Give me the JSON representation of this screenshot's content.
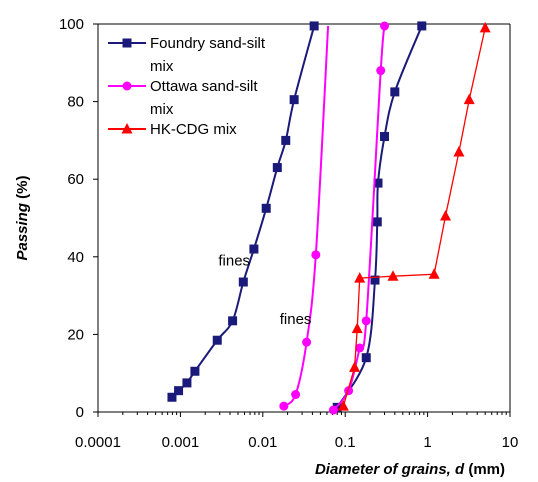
{
  "chart_data": {
    "type": "line",
    "x_scale": "log",
    "xlim": [
      0.0001,
      10
    ],
    "ylim": [
      0,
      100
    ],
    "x_ticks": [
      {
        "value": 0.0001,
        "label": "0.0001"
      },
      {
        "value": 0.001,
        "label": "0.001"
      },
      {
        "value": 0.01,
        "label": "0.01"
      },
      {
        "value": 0.1,
        "label": "0.1"
      },
      {
        "value": 1,
        "label": "1"
      },
      {
        "value": 10,
        "label": "10"
      }
    ],
    "y_ticks": [
      {
        "value": 0,
        "label": "0"
      },
      {
        "value": 20,
        "label": "20"
      },
      {
        "value": 40,
        "label": "40"
      },
      {
        "value": 60,
        "label": "60"
      },
      {
        "value": 80,
        "label": "80"
      },
      {
        "value": 100,
        "label": "100"
      }
    ],
    "ylabel_main": "Passing",
    "ylabel_unit": "(%)",
    "xlabel_main": "Diameter of grains, d",
    "xlabel_unit": "(mm)",
    "grid": false,
    "legend_position": "top-left",
    "annotations": [
      {
        "text": "fines",
        "x": 0.0045,
        "y": 39
      },
      {
        "text": "fines",
        "x": 0.025,
        "y": 24
      }
    ],
    "series": [
      {
        "name_line1": "Foundry sand-silt",
        "name_line2": "mix",
        "color": "#1a1a7a",
        "marker": "square",
        "points": [
          [
            0.00079,
            3.8
          ],
          [
            0.00095,
            5.5
          ],
          [
            0.0012,
            7.5
          ],
          [
            0.0015,
            10.5
          ],
          [
            0.0028,
            18.5
          ],
          [
            0.0043,
            23.5
          ],
          [
            0.0058,
            33.5
          ],
          [
            0.0078,
            42
          ],
          [
            0.011,
            52.5
          ],
          [
            0.015,
            63
          ],
          [
            0.019,
            70
          ],
          [
            0.024,
            80.5
          ],
          [
            0.042,
            99.5
          ]
        ],
        "tail_points": [
          [
            0.08,
            1.2
          ],
          [
            0.18,
            14
          ],
          [
            0.23,
            34
          ],
          [
            0.245,
            49
          ],
          [
            0.25,
            59
          ],
          [
            0.3,
            71
          ],
          [
            0.4,
            82.5
          ],
          [
            0.85,
            99.5
          ]
        ]
      },
      {
        "name_line1": "Ottawa sand-silt",
        "name_line2": "mix",
        "color": "#ff00ff",
        "marker": "circle",
        "points": [
          [
            0.018,
            1.5
          ],
          [
            0.025,
            4.5
          ],
          [
            0.034,
            18
          ],
          [
            0.044,
            40.5
          ],
          [
            0.072,
            0.5
          ],
          [
            0.11,
            5.5
          ],
          [
            0.15,
            16.5
          ],
          [
            0.18,
            23.5
          ],
          [
            0.27,
            88
          ],
          [
            0.3,
            99.5
          ]
        ]
      },
      {
        "name_line1": "HK-CDG mix",
        "name_line2": "",
        "color": "#ff0000",
        "marker": "triangle",
        "points": [
          [
            0.095,
            1.5
          ],
          [
            0.13,
            11.5
          ],
          [
            0.14,
            21.5
          ],
          [
            0.15,
            34.5
          ],
          [
            0.38,
            35
          ],
          [
            1.2,
            35.5
          ],
          [
            1.65,
            50.5
          ],
          [
            2.4,
            67
          ],
          [
            3.2,
            80.5
          ],
          [
            5.0,
            99
          ]
        ]
      }
    ]
  }
}
